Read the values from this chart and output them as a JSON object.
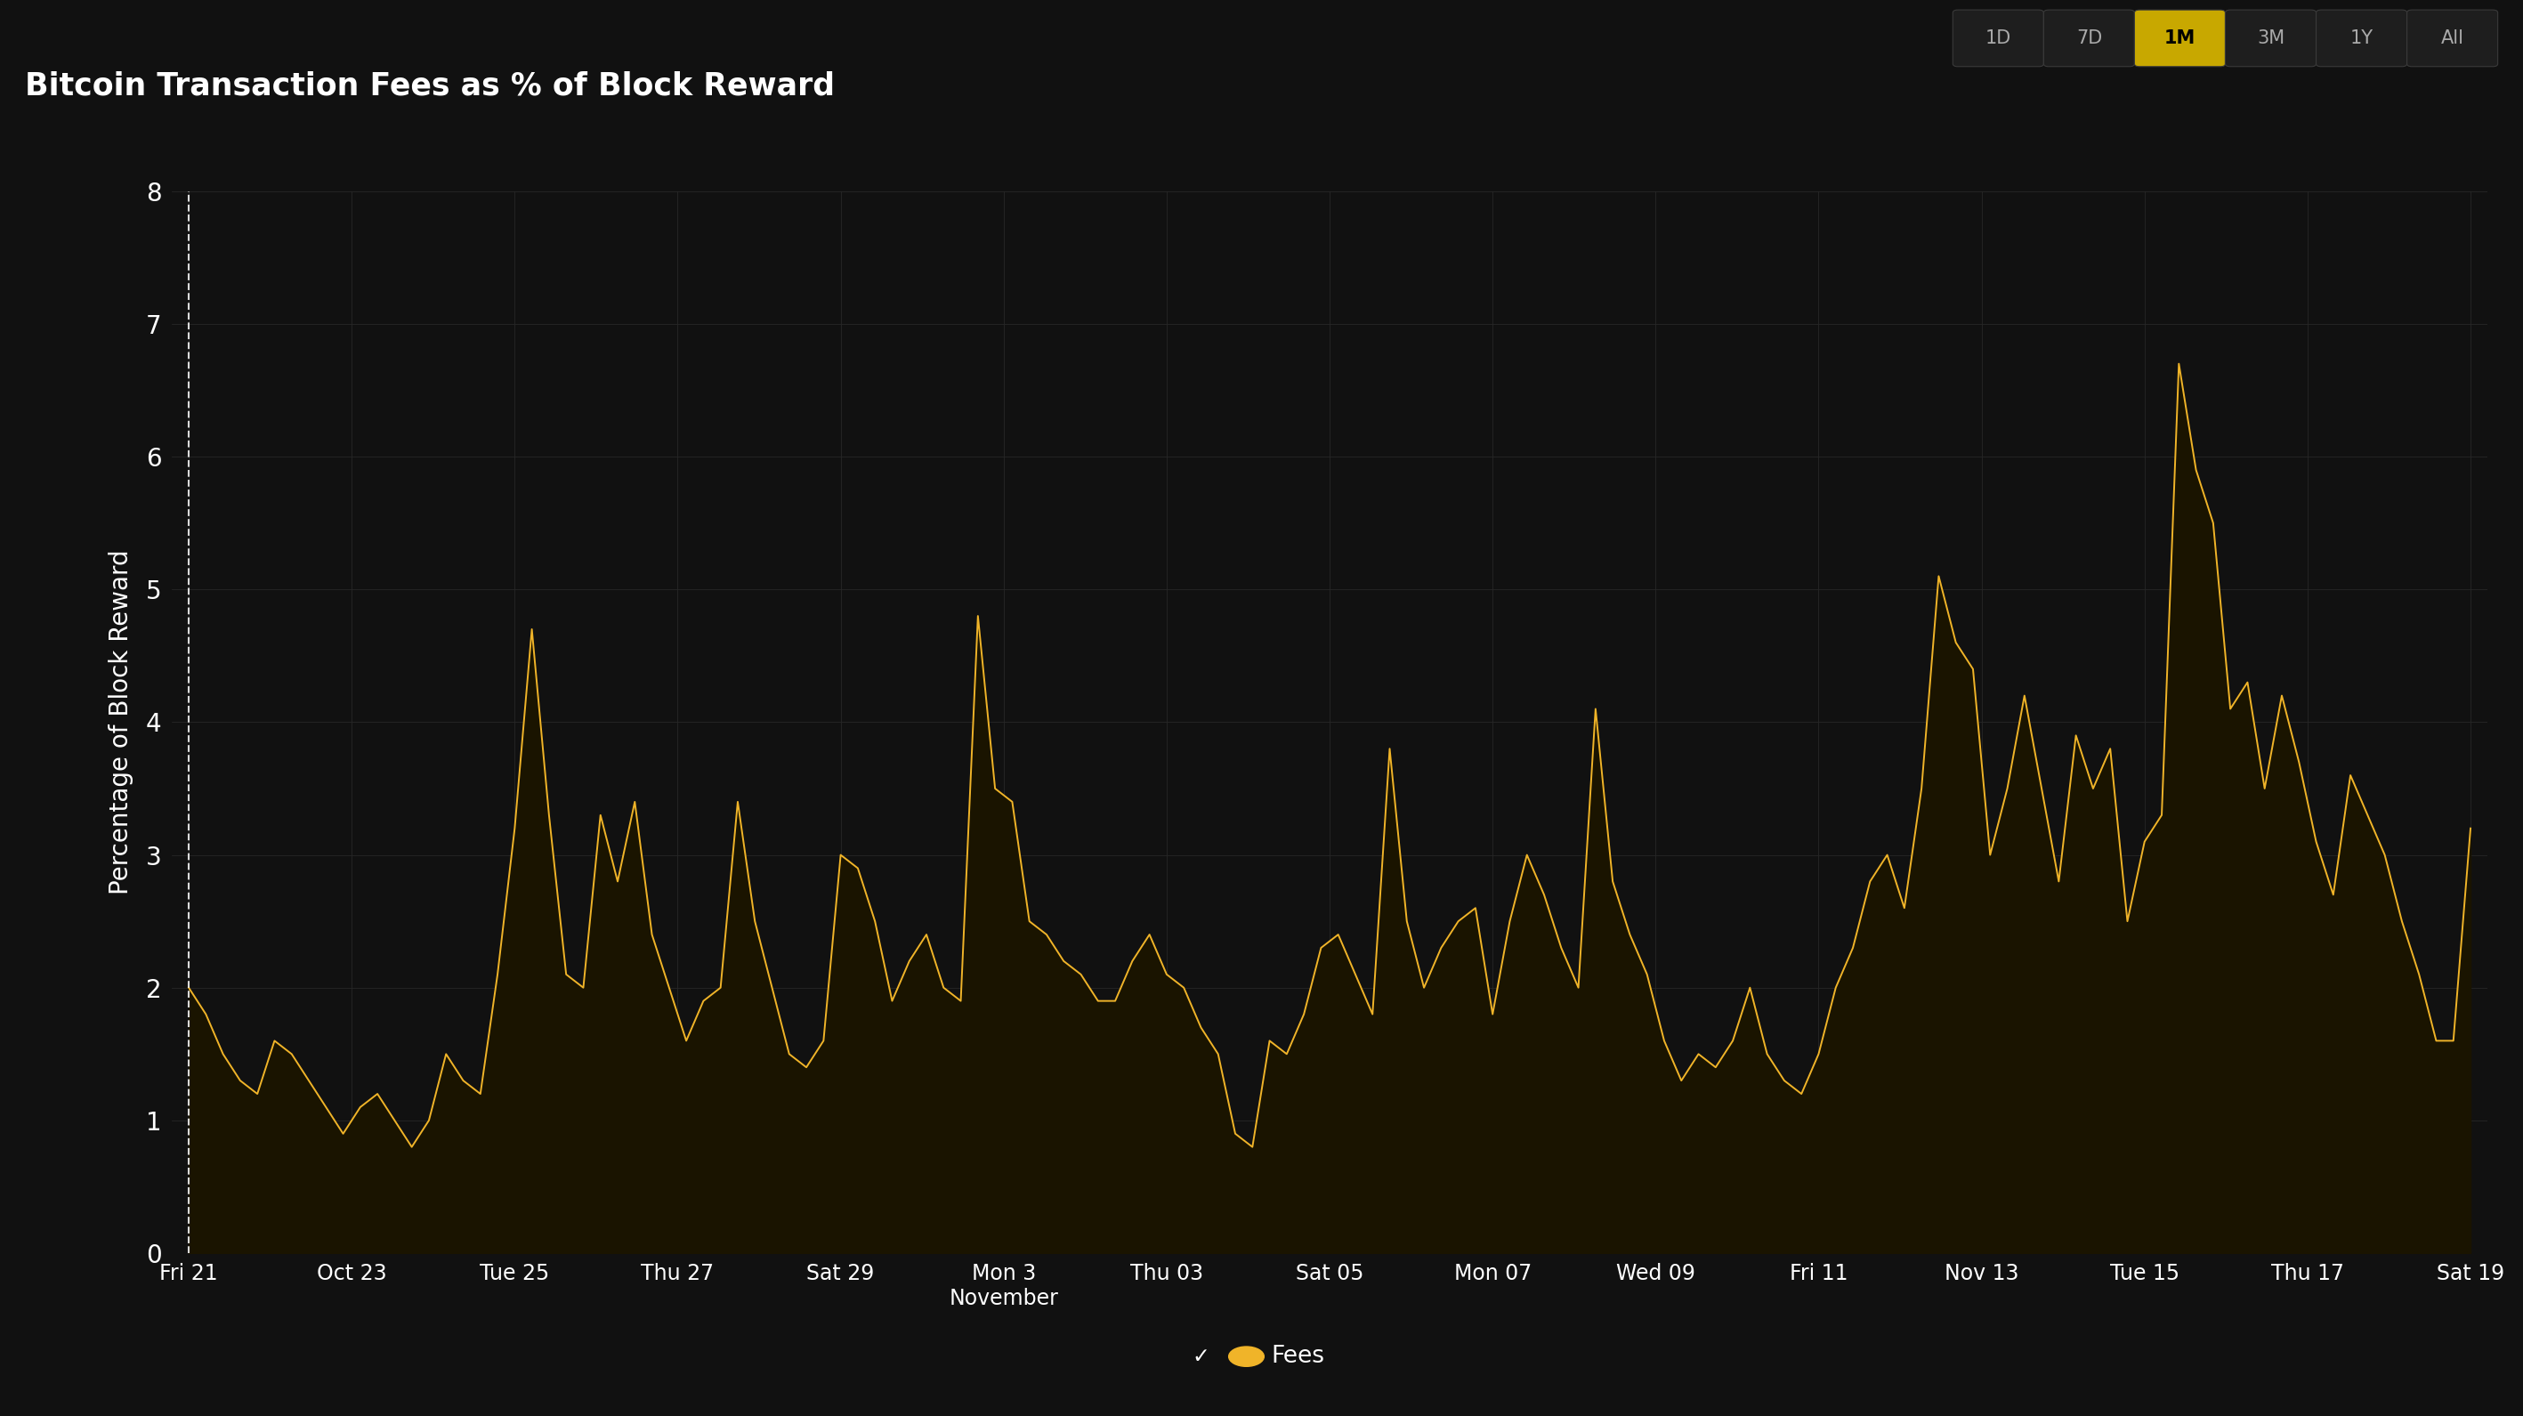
{
  "title": "Bitcoin Transaction Fees as % of Block Reward",
  "ylabel": "Percentage of Block Reward",
  "background_color": "#111111",
  "plot_bg_color": "#111111",
  "line_color": "#f0b429",
  "fill_color": "#1a1400",
  "grid_color": "#272727",
  "text_color": "#ffffff",
  "ylim": [
    0,
    8
  ],
  "yticks": [
    0,
    1,
    2,
    3,
    4,
    5,
    6,
    7,
    8
  ],
  "xtick_labels": [
    "Fri 21",
    "Oct 23",
    "Tue 25",
    "Thu 27",
    "Sat 29",
    "Mon 3\nNovember",
    "Thu 03",
    "Sat 05",
    "Mon 07",
    "Wed 09",
    "Fri 11",
    "Nov 13",
    "Tue 15",
    "Thu 17",
    "Sat 19"
  ],
  "legend_label": "Fees",
  "buttons": [
    "1D",
    "7D",
    "1M",
    "3M",
    "1Y",
    "All"
  ],
  "active_button": "1M",
  "active_btn_color": "#c8a800",
  "inactive_btn_color": "#1e1e1e",
  "btn_border_color": "#3a3a3a",
  "values": [
    2.0,
    1.8,
    1.5,
    1.3,
    1.2,
    1.6,
    1.5,
    1.3,
    1.1,
    0.9,
    1.1,
    1.2,
    1.0,
    0.8,
    1.0,
    1.5,
    1.3,
    1.2,
    2.1,
    3.2,
    4.7,
    3.3,
    2.1,
    2.0,
    3.3,
    2.8,
    3.4,
    2.4,
    2.0,
    1.6,
    1.9,
    2.0,
    3.4,
    2.5,
    2.0,
    1.5,
    1.4,
    1.6,
    3.0,
    2.9,
    2.5,
    1.9,
    2.2,
    2.4,
    2.0,
    1.9,
    4.8,
    3.5,
    3.4,
    2.5,
    2.4,
    2.2,
    2.1,
    1.9,
    1.9,
    2.2,
    2.4,
    2.1,
    2.0,
    1.7,
    1.5,
    0.9,
    0.8,
    1.6,
    1.5,
    1.8,
    2.3,
    2.4,
    2.1,
    1.8,
    3.8,
    2.5,
    2.0,
    2.3,
    2.5,
    2.6,
    1.8,
    2.5,
    3.0,
    2.7,
    2.3,
    2.0,
    4.1,
    2.8,
    2.4,
    2.1,
    1.6,
    1.3,
    1.5,
    1.4,
    1.6,
    2.0,
    1.5,
    1.3,
    1.2,
    1.5,
    2.0,
    2.3,
    2.8,
    3.0,
    2.6,
    3.5,
    5.1,
    4.6,
    4.4,
    3.0,
    3.5,
    4.2,
    3.5,
    2.8,
    3.9,
    3.5,
    3.8,
    2.5,
    3.1,
    3.3,
    6.7,
    5.9,
    5.5,
    4.1,
    4.3,
    3.5,
    4.2,
    3.7,
    3.1,
    2.7,
    3.6,
    3.3,
    3.0,
    2.5,
    2.1,
    1.6,
    1.6,
    3.2
  ]
}
